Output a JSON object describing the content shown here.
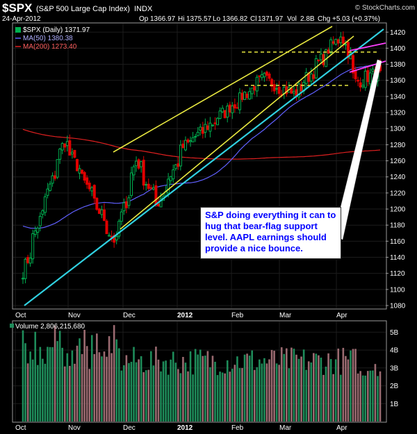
{
  "header": {
    "symbol": "$SPX",
    "name": "(S&P 500 Large Cap Index)",
    "exchange": "INDX",
    "watermark": "© StockCharts.com",
    "date": "24-Apr-2012",
    "op_label": "Op",
    "op": "1366.97",
    "hi_label": "Hi",
    "hi": "1375.57",
    "lo_label": "Lo",
    "lo": "1366.82",
    "cl_label": "Cl",
    "cl": "1371.97",
    "vol_label": "Vol",
    "vol": "2.8B",
    "chg_label": "Chg",
    "chg": "+5.03 (+0.37%)"
  },
  "legend": {
    "price_label": "$SPX (Daily) 1371.97",
    "ma50_label": "MA(50) 1380.38",
    "ma200_label": "MA(200) 1273.40",
    "volume_label": "Volume 2,806,215,680"
  },
  "annotation": "S&P doing everything it can to hug that bear-flag support level. AAPL earnings should provide a nice bounce.",
  "colors": {
    "background": "#000000",
    "up_candle": "#00b050",
    "down_candle": "#e00000",
    "ma50": "#6060ff",
    "ma200": "#e02020",
    "trendline": "#30d0e0",
    "channel": "#e8e840",
    "flag": "#ff40ff",
    "volume_up": "#1e8c5a",
    "volume_down": "#9a6a70",
    "annotation_text": "#0000ff"
  },
  "chart_data": [
    {
      "type": "candlestick",
      "title": "$SPX (Daily)",
      "x_tick_labels": [
        "Oct",
        "Nov",
        "Dec",
        "2012",
        "Feb",
        "Mar",
        "Apr"
      ],
      "y_tick_labels": [
        "1080",
        "1100",
        "1120",
        "1140",
        "1160",
        "1180",
        "1200",
        "1220",
        "1240",
        "1260",
        "1280",
        "1300",
        "1320",
        "1340",
        "1360",
        "1380",
        "1400",
        "1420"
      ],
      "ylim": [
        1070,
        1430
      ],
      "grid": true,
      "last_close": 1371.97,
      "ohlc_anchors": [
        {
          "date": "2011-10-04",
          "close": 1123
        },
        {
          "date": "2011-10-27",
          "close": 1285
        },
        {
          "date": "2011-11-25",
          "close": 1158
        },
        {
          "date": "2011-12-07",
          "close": 1261
        },
        {
          "date": "2011-12-19",
          "close": 1205
        },
        {
          "date": "2012-01-03",
          "close": 1277
        },
        {
          "date": "2012-02-17",
          "close": 1362
        },
        {
          "date": "2012-03-06",
          "close": 1343
        },
        {
          "date": "2012-04-02",
          "close": 1419
        },
        {
          "date": "2012-04-10",
          "close": 1358
        },
        {
          "date": "2012-04-24",
          "close": 1372
        }
      ],
      "series": [
        {
          "name": "MA(50)",
          "last": 1380.38
        },
        {
          "name": "MA(200)",
          "last": 1273.4
        }
      ]
    },
    {
      "type": "bar",
      "title": "Volume",
      "y_tick_labels": [
        "1B",
        "2B",
        "3B",
        "4B",
        "5B"
      ],
      "ylim": [
        0,
        5.6
      ],
      "last_volume": 2806215680
    }
  ]
}
